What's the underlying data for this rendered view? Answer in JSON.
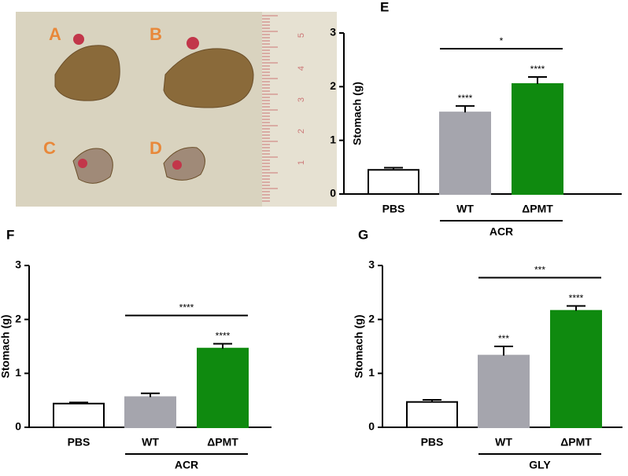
{
  "photo": {
    "labels": [
      "A",
      "B",
      "C",
      "D"
    ],
    "ruler_labels": [
      "5",
      "4",
      "3",
      "2",
      "1"
    ]
  },
  "chart_data": [
    {
      "type": "bar",
      "title": "E",
      "ylabel": "Stomach (g)",
      "categories": [
        "PBS",
        "WT",
        "ΔPMT"
      ],
      "values": [
        0.45,
        1.52,
        2.05
      ],
      "errors": [
        0.04,
        0.12,
        0.13
      ],
      "colors": [
        "#ffffff",
        "#a5a5ad",
        "#0f8a0f"
      ],
      "bar_annotations": [
        null,
        "****",
        "****"
      ],
      "bracket_label": "*",
      "group_label": "ACR",
      "ylim": [
        0,
        3
      ],
      "yticks": [
        0,
        1,
        2,
        3
      ]
    },
    {
      "type": "bar",
      "title": "F",
      "ylabel": "Stomach (g)",
      "categories": [
        "PBS",
        "WT",
        "ΔPMT"
      ],
      "values": [
        0.44,
        0.56,
        1.46
      ],
      "errors": [
        0.02,
        0.07,
        0.09
      ],
      "colors": [
        "#ffffff",
        "#a5a5ad",
        "#0f8a0f"
      ],
      "bar_annotations": [
        null,
        null,
        "****"
      ],
      "bracket_label": "****",
      "group_label": "ACR",
      "ylim": [
        0,
        3
      ],
      "yticks": [
        0,
        1,
        2,
        3
      ]
    },
    {
      "type": "bar",
      "title": "G",
      "ylabel": "Stomach (g)",
      "categories": [
        "PBS",
        "WT",
        "ΔPMT"
      ],
      "values": [
        0.47,
        1.33,
        2.16
      ],
      "errors": [
        0.04,
        0.17,
        0.09
      ],
      "colors": [
        "#ffffff",
        "#a5a5ad",
        "#0f8a0f"
      ],
      "bar_annotations": [
        null,
        "***",
        "****"
      ],
      "bracket_label": "***",
      "group_label": "GLY",
      "ylim": [
        0,
        3
      ],
      "yticks": [
        0,
        1,
        2,
        3
      ]
    }
  ]
}
